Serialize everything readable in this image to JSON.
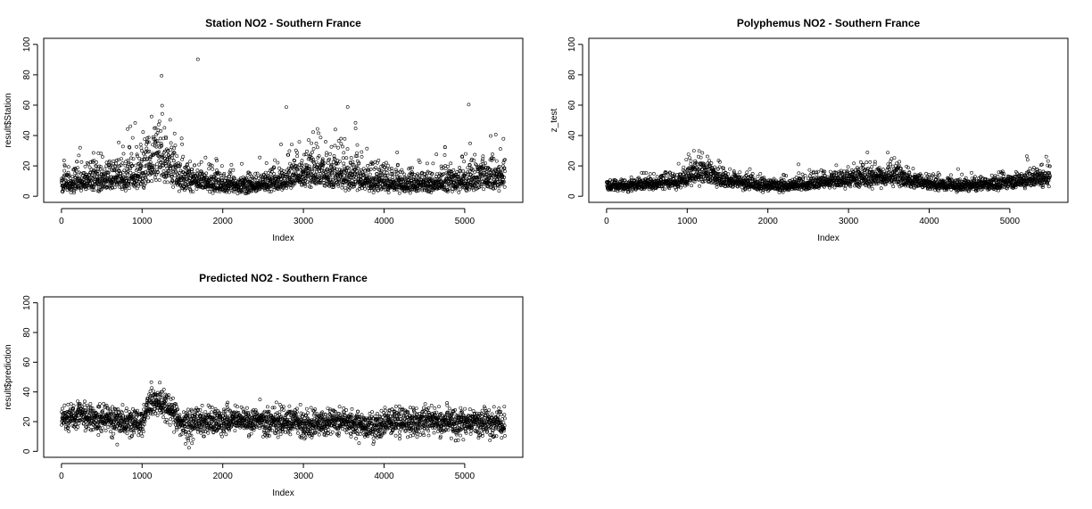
{
  "chart_data": [
    {
      "type": "scatter",
      "title": "Station NO2 - Southern France",
      "xlabel": "Index",
      "ylabel": "result$Station",
      "xlim": [
        0,
        5500
      ],
      "ylim": [
        0,
        100
      ],
      "xticks": [
        "0",
        "1000",
        "2000",
        "3000",
        "4000",
        "5000"
      ],
      "yticks": [
        "0",
        "20",
        "40",
        "60",
        "80",
        "100"
      ],
      "grid": false,
      "marker": "open-circle",
      "n_points": 5500,
      "series": [
        {
          "x": [
            0,
            250,
            500,
            750,
            1000,
            1100,
            1200,
            1300,
            1500,
            1750,
            2000,
            2250,
            2500,
            2750,
            2900,
            3100,
            3250,
            3500,
            3750,
            4000,
            4250,
            4500,
            4750,
            5000,
            5250,
            5500
          ],
          "values": [
            10,
            11,
            14,
            15,
            18,
            28,
            35,
            26,
            16,
            12,
            9,
            9,
            10,
            13,
            18,
            20,
            19,
            17,
            14,
            12,
            9,
            10,
            11,
            13,
            15,
            18
          ]
        }
      ]
    },
    {
      "type": "scatter",
      "title": "Polyphemus NO2 - Southern France",
      "xlabel": "Index",
      "ylabel": "z_test",
      "xlim": [
        0,
        5500
      ],
      "ylim": [
        0,
        100
      ],
      "xticks": [
        "0",
        "1000",
        "2000",
        "3000",
        "4000",
        "5000"
      ],
      "yticks": [
        "0",
        "20",
        "40",
        "60",
        "80",
        "100"
      ],
      "grid": false,
      "marker": "open-circle",
      "n_points": 5500,
      "series": [
        {
          "x": [
            0,
            250,
            500,
            750,
            1000,
            1100,
            1200,
            1300,
            1500,
            1750,
            2000,
            2250,
            2500,
            2750,
            2900,
            3100,
            3250,
            3500,
            3600,
            3750,
            4000,
            4250,
            4500,
            4750,
            5000,
            5250,
            5500
          ],
          "values": [
            7,
            7,
            8,
            9,
            12,
            16,
            17,
            13,
            10,
            8,
            7,
            7,
            8,
            10,
            11,
            12,
            12,
            13,
            14,
            10,
            8,
            7,
            7,
            8,
            9,
            11,
            13
          ]
        }
      ]
    },
    {
      "type": "scatter",
      "title": "Predicted NO2 - Southern France",
      "xlabel": "Index",
      "ylabel": "result$prediction",
      "xlim": [
        0,
        5500
      ],
      "ylim": [
        0,
        100
      ],
      "xticks": [
        "0",
        "1000",
        "2000",
        "3000",
        "4000",
        "5000"
      ],
      "yticks": [
        "0",
        "20",
        "40",
        "60",
        "80",
        "100"
      ],
      "grid": false,
      "marker": "open-circle",
      "n_points": 5500,
      "series": [
        {
          "x": [
            0,
            250,
            500,
            750,
            1000,
            1100,
            1200,
            1300,
            1400,
            1500,
            1750,
            2000,
            2250,
            2500,
            2750,
            3000,
            3250,
            3500,
            3750,
            3900,
            4000,
            4250,
            4500,
            4750,
            5000,
            5250,
            5500
          ],
          "values": [
            23,
            24,
            22,
            20,
            19,
            34,
            32,
            30,
            25,
            17,
            20,
            21,
            21,
            20,
            20,
            19,
            19,
            20,
            17,
            15,
            20,
            20,
            21,
            20,
            19,
            19,
            18
          ]
        }
      ]
    }
  ]
}
